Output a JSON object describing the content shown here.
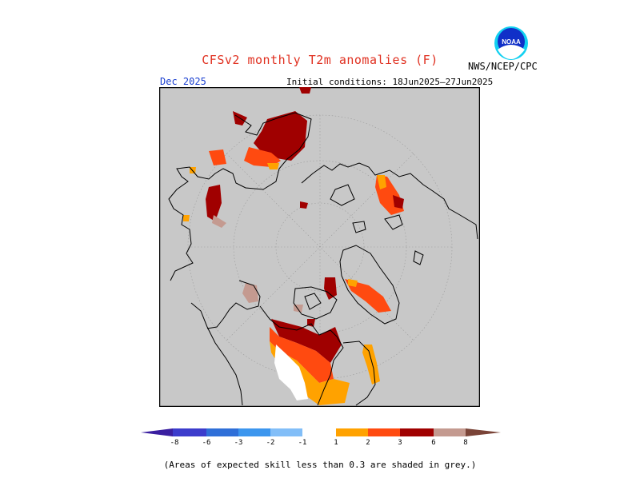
{
  "header": {
    "title": "CFSv2 monthly T2m anomalies (F)",
    "org": "NWS/NCEP/CPC",
    "valid_month": "Dec 2025",
    "initial_conditions": "Initial conditions: 18Jun2025–27Jun2025"
  },
  "logo": {
    "text": "NOAA",
    "icon": "noaa-logo"
  },
  "legend": {
    "labels": [
      "-8",
      "-6",
      "-3",
      "-2",
      "-1",
      "1",
      "2",
      "3",
      "6",
      "8"
    ],
    "colors": {
      "below_8": "#3a1fa0",
      "m8_m6": "#3c3ccc",
      "m6_m3": "#2f6fd8",
      "m3_m2": "#3c96ee",
      "m2_m1": "#82bef8",
      "m1_p1": "#ffffff",
      "p1_p2": "#ffa200",
      "p2_p3": "#ff4a10",
      "p3_p6": "#a00000",
      "p6_p8": "#c49a90",
      "above_8": "#7a4438"
    }
  },
  "map": {
    "projection": "north-polar-stereographic",
    "background_color": "#c8c8c8"
  },
  "footnote": "(Areas of expected skill less than 0.3 are shaded in grey.)"
}
